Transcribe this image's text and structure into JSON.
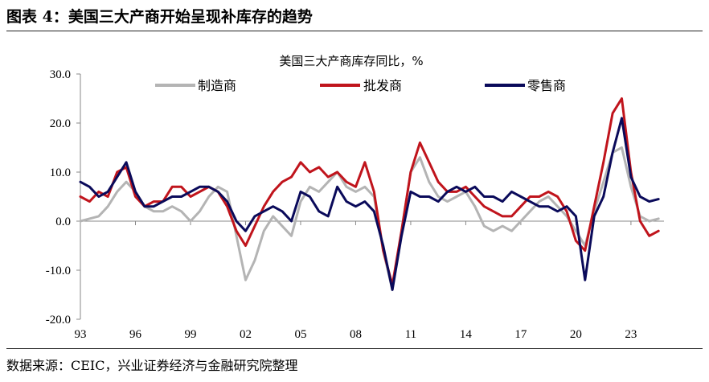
{
  "figure": {
    "title": "图表 4：美国三大产商开始呈现补库存的趋势",
    "source": "数据来源：CEIC，兴业证券经济与金融研究院整理"
  },
  "chart_data": {
    "type": "line",
    "title": "美国三大产商库存同比，%",
    "xlabel": "",
    "ylabel": "",
    "ylim": [
      -20,
      30
    ],
    "y_ticks": [
      "30.0",
      "20.0",
      "10.0",
      "0.0",
      "-10.0",
      "-20.0"
    ],
    "x_ticks": [
      "93",
      "96",
      "99",
      "02",
      "05",
      "08",
      "11",
      "14",
      "17",
      "20",
      "23"
    ],
    "x_tick_years": [
      1993,
      1996,
      1999,
      2002,
      2005,
      2008,
      2011,
      2014,
      2017,
      2020,
      2023
    ],
    "xlim": [
      1993,
      2024.8
    ],
    "grid": false,
    "legend": "top",
    "series": [
      {
        "name": "制造商",
        "color": "#b4b4b4",
        "x": [
          1993.0,
          1993.5,
          1994.0,
          1994.5,
          1995.0,
          1995.5,
          1996.0,
          1996.5,
          1997.0,
          1997.5,
          1998.0,
          1998.5,
          1999.0,
          1999.5,
          2000.0,
          2000.5,
          2001.0,
          2001.5,
          2002.0,
          2002.5,
          2003.0,
          2003.5,
          2004.0,
          2004.5,
          2005.0,
          2005.5,
          2006.0,
          2006.5,
          2007.0,
          2007.5,
          2008.0,
          2008.5,
          2009.0,
          2009.5,
          2010.0,
          2010.5,
          2011.0,
          2011.5,
          2012.0,
          2012.5,
          2013.0,
          2013.5,
          2014.0,
          2014.5,
          2015.0,
          2015.5,
          2016.0,
          2016.5,
          2017.0,
          2017.5,
          2018.0,
          2018.5,
          2019.0,
          2019.5,
          2020.0,
          2020.5,
          2021.0,
          2021.5,
          2022.0,
          2022.5,
          2023.0,
          2023.5,
          2024.0,
          2024.5
        ],
        "y": [
          0,
          0.5,
          1,
          3,
          6,
          8,
          6,
          3,
          2,
          2,
          3,
          2,
          0,
          2,
          5,
          7,
          6,
          -3,
          -12,
          -8,
          -2,
          1,
          -1,
          -3,
          4,
          7,
          6,
          8,
          10,
          7,
          6,
          7,
          5,
          -6,
          -14,
          -2,
          10,
          13,
          8,
          5,
          4,
          5,
          6,
          3,
          -1,
          -2,
          -1,
          -2,
          0,
          2,
          4,
          5,
          3,
          1,
          -2,
          -5,
          2,
          8,
          14,
          15,
          7,
          1,
          0,
          0.5
        ]
      },
      {
        "name": "批发商",
        "color": "#c0141c",
        "x": [
          1993.0,
          1993.5,
          1994.0,
          1994.5,
          1995.0,
          1995.5,
          1996.0,
          1996.5,
          1997.0,
          1997.5,
          1998.0,
          1998.5,
          1999.0,
          1999.5,
          2000.0,
          2000.5,
          2001.0,
          2001.5,
          2002.0,
          2002.5,
          2003.0,
          2003.5,
          2004.0,
          2004.5,
          2005.0,
          2005.5,
          2006.0,
          2006.5,
          2007.0,
          2007.5,
          2008.0,
          2008.5,
          2009.0,
          2009.5,
          2010.0,
          2010.5,
          2011.0,
          2011.5,
          2012.0,
          2012.5,
          2013.0,
          2013.5,
          2014.0,
          2014.5,
          2015.0,
          2015.5,
          2016.0,
          2016.5,
          2017.0,
          2017.5,
          2018.0,
          2018.5,
          2019.0,
          2019.5,
          2020.0,
          2020.5,
          2021.0,
          2021.5,
          2022.0,
          2022.5,
          2023.0,
          2023.5,
          2024.0,
          2024.5
        ],
        "y": [
          5,
          4,
          6,
          5,
          10,
          11,
          5,
          3,
          4,
          4,
          7,
          7,
          5,
          6,
          7,
          6,
          3,
          -2,
          -5,
          -1,
          3,
          6,
          8,
          9,
          12,
          10,
          11,
          9,
          10,
          8,
          7,
          12,
          6,
          -6,
          -13,
          -2,
          10,
          16,
          12,
          8,
          6,
          6,
          7,
          5,
          3,
          2,
          1,
          1,
          3,
          5,
          5,
          6,
          5,
          2,
          -4,
          -6,
          3,
          12,
          22,
          25,
          10,
          0,
          -3,
          -2
        ]
      },
      {
        "name": "零售商",
        "color": "#0a0a5a",
        "x": [
          1993.0,
          1993.5,
          1994.0,
          1994.5,
          1995.0,
          1995.5,
          1996.0,
          1996.5,
          1997.0,
          1997.5,
          1998.0,
          1998.5,
          1999.0,
          1999.5,
          2000.0,
          2000.5,
          2001.0,
          2001.5,
          2002.0,
          2002.5,
          2003.0,
          2003.5,
          2004.0,
          2004.5,
          2005.0,
          2005.5,
          2006.0,
          2006.5,
          2007.0,
          2007.5,
          2008.0,
          2008.5,
          2009.0,
          2009.5,
          2010.0,
          2010.5,
          2011.0,
          2011.5,
          2012.0,
          2012.5,
          2013.0,
          2013.5,
          2014.0,
          2014.5,
          2015.0,
          2015.5,
          2016.0,
          2016.5,
          2017.0,
          2017.5,
          2018.0,
          2018.5,
          2019.0,
          2019.5,
          2020.0,
          2020.5,
          2021.0,
          2021.5,
          2022.0,
          2022.5,
          2023.0,
          2023.5,
          2024.0,
          2024.5
        ],
        "y": [
          8,
          7,
          5,
          6,
          9,
          12,
          6,
          3,
          3,
          4,
          5,
          5,
          6,
          7,
          7,
          6,
          4,
          0,
          -2,
          1,
          2,
          3,
          2,
          0,
          6,
          5,
          2,
          1,
          7,
          4,
          3,
          4,
          2,
          -5,
          -14,
          -3,
          6,
          5,
          5,
          4,
          6,
          7,
          6,
          7,
          5,
          5,
          4,
          6,
          5,
          4,
          3,
          3,
          2,
          3,
          1,
          -12,
          1,
          5,
          14,
          21,
          9,
          5,
          4,
          4.5
        ]
      }
    ]
  }
}
